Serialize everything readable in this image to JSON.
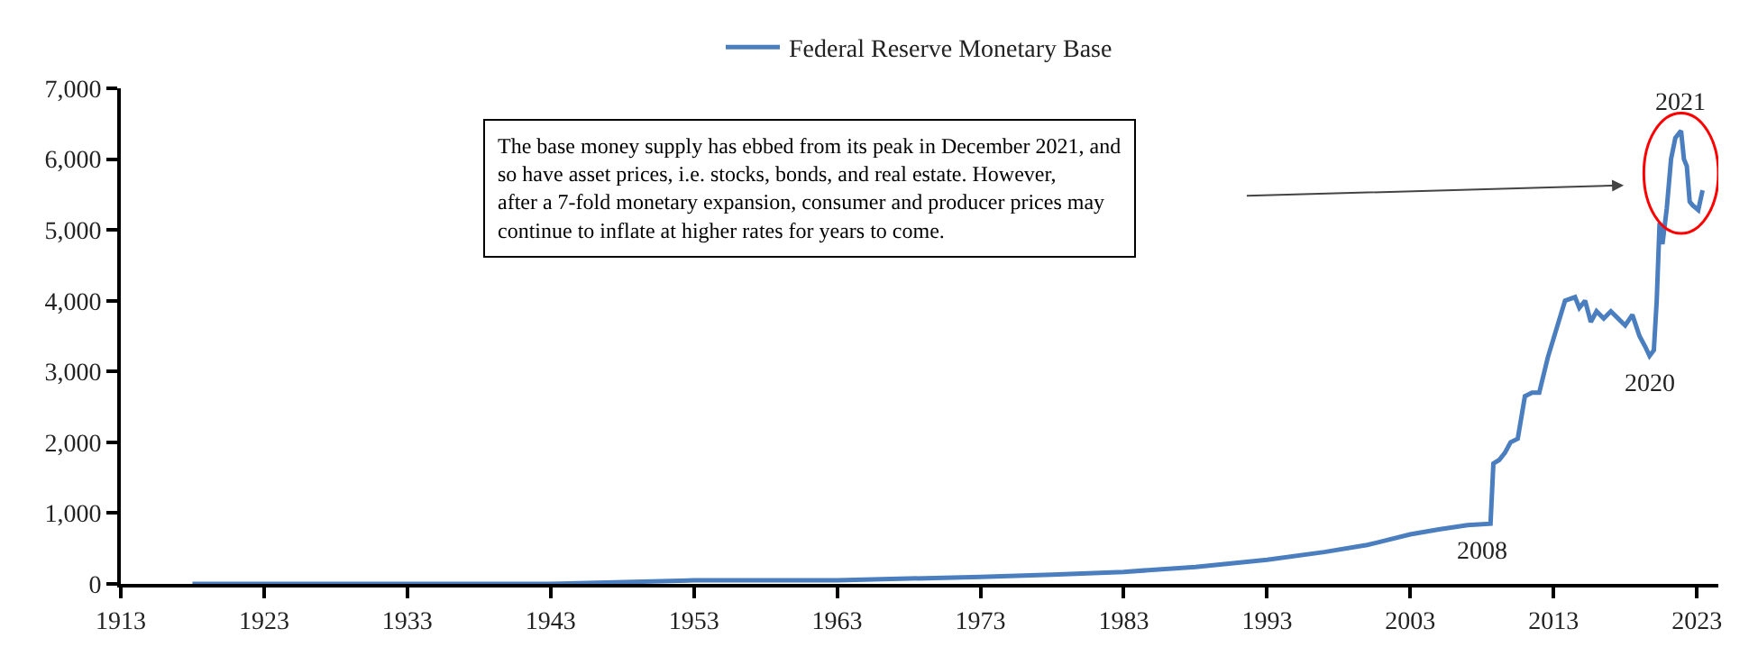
{
  "chart_data": {
    "type": "line",
    "legend": "top",
    "marker": "none",
    "line_style": "solid",
    "xlim": [
      1913,
      2024.5
    ],
    "xticks": [
      1913,
      1923,
      1933,
      1943,
      1953,
      1963,
      1973,
      1983,
      1993,
      2003,
      2013,
      2023
    ],
    "ylim": [
      0,
      7000
    ],
    "yticks": [
      {
        "value": 0,
        "label": "0"
      },
      {
        "value": 1000,
        "label": "1,000"
      },
      {
        "value": 2000,
        "label": "2,000"
      },
      {
        "value": 3000,
        "label": "3,000"
      },
      {
        "value": 4000,
        "label": "4,000"
      },
      {
        "value": 5000,
        "label": "5,000"
      },
      {
        "value": 6000,
        "label": "6,000"
      },
      {
        "value": 7000,
        "label": "7,000"
      }
    ],
    "series": [
      {
        "name": "Federal Reserve Monetary Base",
        "color": "#4a7ebf",
        "x": [
          1918,
          1930,
          1943,
          1953,
          1963,
          1973,
          1978,
          1983,
          1988,
          1993,
          1997,
          2000,
          2003,
          2005,
          2007,
          2008.6,
          2008.8,
          2009.2,
          2009.6,
          2010,
          2010.5,
          2011,
          2011.5,
          2012,
          2012.6,
          2013.2,
          2013.8,
          2014.5,
          2014.8,
          2015.2,
          2015.6,
          2016,
          2016.5,
          2017,
          2017.5,
          2018,
          2018.5,
          2019,
          2019.4,
          2019.7,
          2020.0,
          2020.2,
          2020.4,
          2020.6,
          2020.9,
          2021.2,
          2021.5,
          2021.9,
          2022.1,
          2022.3,
          2022.5,
          2022.7,
          2023.1,
          2023.4
        ],
        "values": [
          0,
          0,
          0,
          50,
          50,
          100,
          130,
          170,
          240,
          340,
          450,
          550,
          700,
          770,
          830,
          850,
          1700,
          1750,
          1850,
          2000,
          2050,
          2650,
          2700,
          2700,
          3200,
          3600,
          4000,
          4050,
          3900,
          4000,
          3700,
          3850,
          3750,
          3850,
          3750,
          3650,
          3800,
          3500,
          3350,
          3220,
          3300,
          4000,
          5100,
          4800,
          5300,
          6000,
          6300,
          6400,
          6000,
          5900,
          5400,
          5350,
          5280,
          5560
        ]
      }
    ],
    "annotations": [
      {
        "text": "2008",
        "x": 2008,
        "y": 850
      },
      {
        "text": "2020",
        "x": 2019.7,
        "y": 3220
      },
      {
        "text": "2021",
        "x": 2021.9,
        "y": 6400
      },
      "The base money supply has ebbed from its peak in December 2021, and so have asset prices, i.e. stocks, bonds, and real estate. However, after a 7-fold monetary expansion, consumer and producer prices may continue to inflate at higher rates for years to come."
    ]
  }
}
